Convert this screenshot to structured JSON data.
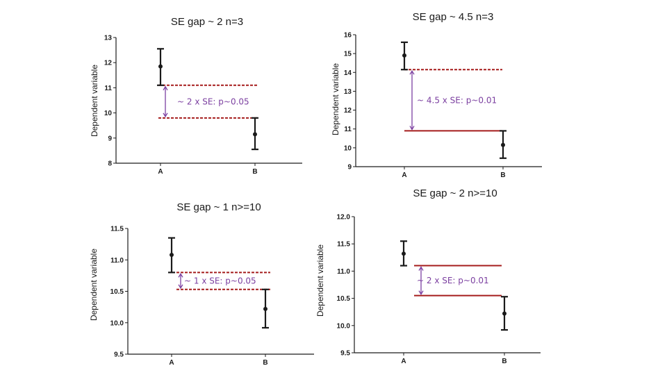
{
  "colors": {
    "axis": "#1a1a1a",
    "guide": "#a51c1c",
    "arrow": "#7b3fa0",
    "annotation": "#7b3fa0"
  },
  "chart_data": [
    {
      "type": "errorbar",
      "title": "SE gap ~ 2 n=3",
      "ylabel": "Dependent variable",
      "ylim": [
        8,
        13
      ],
      "yticks": [
        "8",
        "9",
        "10",
        "11",
        "12",
        "13"
      ],
      "categories": [
        "A",
        "B"
      ],
      "means": [
        11.85,
        9.15
      ],
      "se_low": [
        11.1,
        8.55
      ],
      "se_high": [
        12.55,
        9.8
      ],
      "guide_lines": [
        11.1,
        9.8
      ],
      "guide_style": "dashed",
      "annotation": "~ 2 x SE: p~0.05"
    },
    {
      "type": "errorbar",
      "title": "SE gap ~ 4.5 n=3",
      "ylabel": "Dependent variable",
      "ylim": [
        9,
        16
      ],
      "yticks": [
        "9",
        "10",
        "11",
        "12",
        "13",
        "14",
        "15",
        "16"
      ],
      "categories": [
        "A",
        "B"
      ],
      "means": [
        14.9,
        10.15
      ],
      "se_low": [
        14.15,
        9.45
      ],
      "se_high": [
        15.6,
        10.9
      ],
      "guide_lines": [
        14.15,
        10.9
      ],
      "guide_style": [
        "dashed",
        "solid"
      ],
      "annotation": "~ 4.5 x SE: p~0.01"
    },
    {
      "type": "errorbar",
      "title": "SE gap ~ 1 n>=10",
      "ylabel": "Dependent variable",
      "ylim": [
        9.5,
        11.5
      ],
      "yticks": [
        "9.5",
        "10.0",
        "10.5",
        "11.0",
        "11.5"
      ],
      "categories": [
        "A",
        "B"
      ],
      "means": [
        11.08,
        10.22
      ],
      "se_low": [
        10.8,
        9.92
      ],
      "se_high": [
        11.35,
        10.53
      ],
      "guide_lines": [
        10.8,
        10.53
      ],
      "guide_style": "dashed",
      "annotation": "~ 1 x SE: p~0.05"
    },
    {
      "type": "errorbar",
      "title": "SE gap ~ 2 n>=10",
      "ylabel": "Dependent variable",
      "ylim": [
        9.5,
        12.0
      ],
      "yticks": [
        "9.5",
        "10.0",
        "10.5",
        "11.0",
        "11.5",
        "12.0"
      ],
      "categories": [
        "A",
        "B"
      ],
      "means": [
        11.32,
        10.22
      ],
      "se_low": [
        11.1,
        9.92
      ],
      "se_high": [
        11.55,
        10.53
      ],
      "guide_lines": [
        11.1,
        10.55
      ],
      "guide_style": "solid",
      "annotation": "~ 2 x SE: p~0.01"
    }
  ]
}
